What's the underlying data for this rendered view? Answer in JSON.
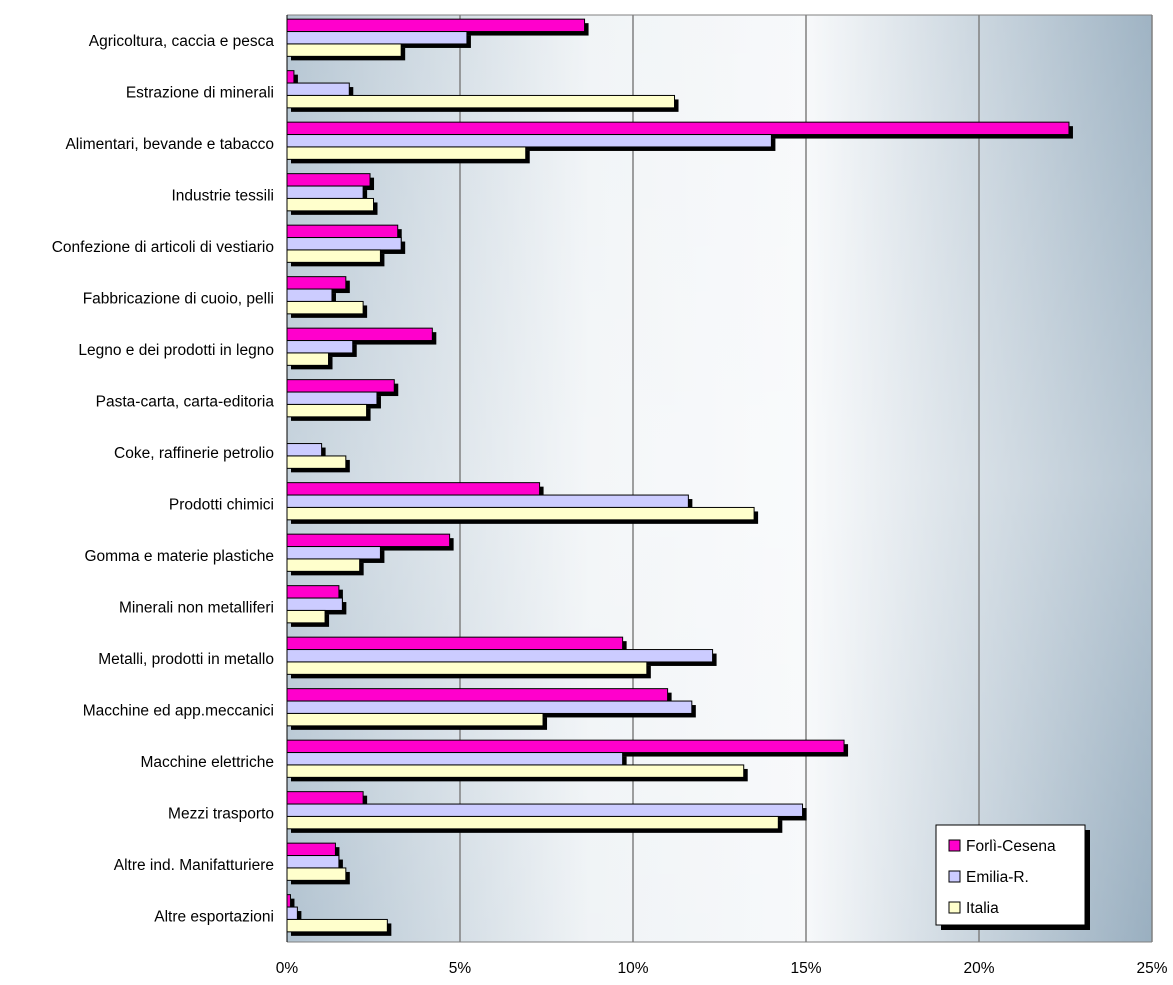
{
  "colors": {
    "forli": "#ff00cc",
    "emilia": "#ccccff",
    "italia": "#ffffcc",
    "shadow": "#000000",
    "plot_bg_edge": "#8fa6ba",
    "plot_bg_center": "#f4f6f8",
    "gridline": "#808080"
  },
  "chart_data": {
    "type": "bar",
    "orientation": "horizontal",
    "title": "",
    "xlabel": "",
    "ylabel": "",
    "xlim": [
      0,
      25
    ],
    "x_ticks": [
      0,
      5,
      10,
      15,
      20,
      25
    ],
    "x_tick_labels": [
      "0%",
      "5%",
      "10%",
      "15%",
      "20%",
      "25%"
    ],
    "grid": "vertical",
    "legend_position": "bottom-right",
    "categories": [
      "Agricoltura, caccia e pesca",
      "Estrazione di minerali",
      "Alimentari, bevande e tabacco",
      "Industrie tessili",
      "Confezione di articoli di vestiario",
      "Fabbricazione di cuoio, pelli",
      "Legno e dei prodotti in legno",
      "Pasta-carta, carta-editoria",
      "Coke, raffinerie petrolio",
      "Prodotti chimici",
      "Gomma e materie plastiche",
      "Minerali non metalliferi",
      "Metalli,  prodotti in metallo",
      "Macchine ed app.meccanici",
      "Macchine elettriche",
      "Mezzi trasporto",
      "Altre ind. Manifatturiere",
      "Altre esportazioni"
    ],
    "series": [
      {
        "name": "Forlì-Cesena",
        "color_key": "forli",
        "values": [
          8.6,
          0.2,
          22.6,
          2.4,
          3.2,
          1.7,
          4.2,
          3.1,
          0.0,
          7.3,
          4.7,
          1.5,
          9.7,
          11.0,
          16.1,
          2.2,
          1.4,
          0.1
        ]
      },
      {
        "name": "Emilia-R.",
        "color_key": "emilia",
        "values": [
          5.2,
          1.8,
          14.0,
          2.2,
          3.3,
          1.3,
          1.9,
          2.6,
          1.0,
          11.6,
          2.7,
          1.6,
          12.3,
          11.7,
          9.7,
          14.9,
          1.5,
          0.3
        ]
      },
      {
        "name": "Italia",
        "color_key": "italia",
        "values": [
          3.3,
          11.2,
          6.9,
          2.5,
          2.7,
          2.2,
          1.2,
          2.3,
          1.7,
          13.5,
          2.1,
          1.1,
          10.4,
          7.4,
          13.2,
          14.2,
          1.7,
          2.9
        ]
      }
    ]
  }
}
